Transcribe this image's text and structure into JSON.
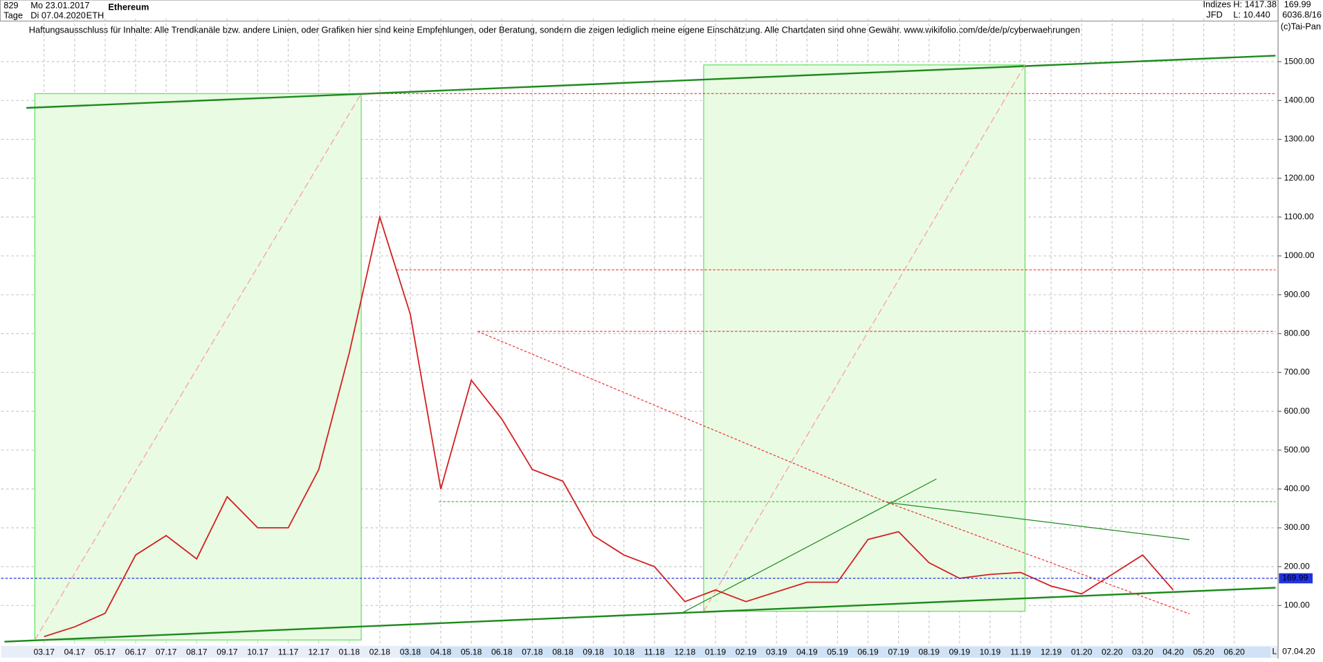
{
  "header": {
    "id": "829",
    "start": "Mo 23.01.2017",
    "title": "Ethereum",
    "period": "Tage",
    "end": "Di 07.04.2020",
    "symbol": "ETH",
    "disclaimer": "Haftungsausschluss für Inhalte: Alle Trendkanäle bzw. andere Linien, oder Grafiken hier sind keine Empfehlungen, oder Beratung, sondern die zeigen lediglich meine eigene Einschätzung. Alle Chartdaten sind ohne Gewähr.  www.wikifolio.com/de/de/p/cyberwaehrungen",
    "market": "Indizes",
    "broker": "JFD",
    "high": "H: 1417.38",
    "low": "L: 10.440",
    "ratio": "6036.8/16",
    "copyright": "(c)Tai-Pan",
    "date": "07.04.20",
    "scale": "L"
  },
  "chart_data": {
    "type": "line",
    "title": "Ethereum",
    "categories": [
      "03.17",
      "04.17",
      "05.17",
      "06.17",
      "07.17",
      "08.17",
      "09.17",
      "10.17",
      "11.17",
      "12.17",
      "01.18",
      "02.18",
      "03.18",
      "04.18",
      "05.18",
      "06.18",
      "07.18",
      "08.18",
      "09.18",
      "10.18",
      "11.18",
      "12.18",
      "01.19",
      "02.19",
      "03.19",
      "04.19",
      "05.19",
      "06.19",
      "07.19",
      "08.19",
      "09.19",
      "10.19",
      "11.19",
      "12.19",
      "01.20",
      "02.20",
      "03.20",
      "04.20",
      "05.20",
      "06.20"
    ],
    "series": [
      {
        "name": "Ethereum",
        "color": "#d42020",
        "values": [
          20,
          45,
          80,
          230,
          280,
          220,
          380,
          300,
          300,
          450,
          750,
          1100,
          850,
          400,
          680,
          580,
          450,
          420,
          280,
          230,
          200,
          110,
          140,
          110,
          135,
          160,
          160,
          270,
          290,
          210,
          170,
          180,
          185,
          150,
          130,
          180,
          230,
          140,
          null,
          null
        ]
      }
    ],
    "last_value": 169.99,
    "ylim": [
      -4,
      1611
    ],
    "yticks": [
      {
        "value": 100,
        "label": "100.00"
      },
      {
        "value": 200,
        "label": "200.00"
      },
      {
        "value": 300,
        "label": "300.00"
      },
      {
        "value": 400,
        "label": "400.00"
      },
      {
        "value": 500,
        "label": "500.00"
      },
      {
        "value": 600,
        "label": "600.00"
      },
      {
        "value": 700,
        "label": "700.00"
      },
      {
        "value": 800,
        "label": "800.00"
      },
      {
        "value": 900,
        "label": "900.00"
      },
      {
        "value": 1000,
        "label": "1000.00"
      },
      {
        "value": 1100,
        "label": "1100.00"
      },
      {
        "value": 1200,
        "label": "1200.00"
      },
      {
        "value": 1300,
        "label": "1300.00"
      },
      {
        "value": 1400,
        "label": "1400.00"
      },
      {
        "value": 1500,
        "label": "1500.00"
      }
    ],
    "grid": true
  }
}
